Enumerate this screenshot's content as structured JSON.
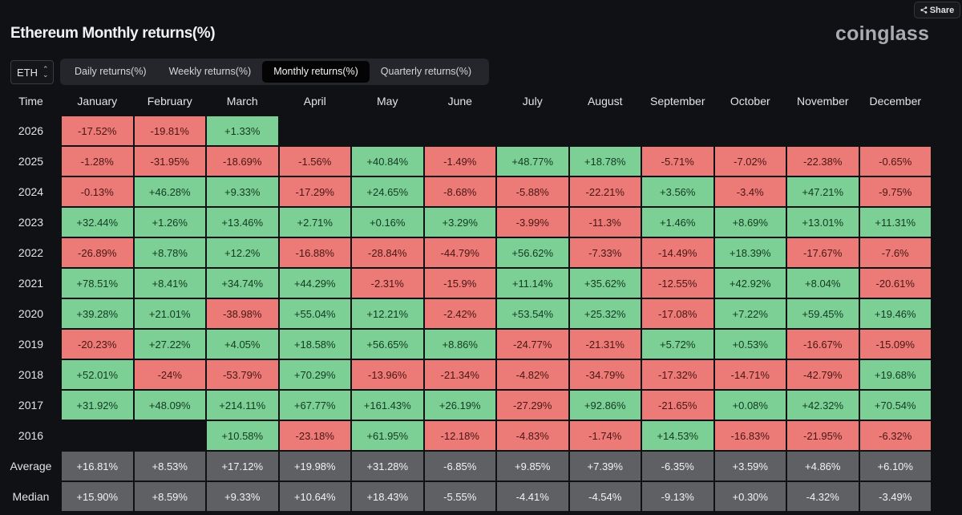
{
  "header": {
    "title": "Ethereum Monthly returns(%)",
    "brand": "coinglass",
    "share_label": "Share"
  },
  "controls": {
    "asset": "ETH",
    "tabs": [
      "Daily returns(%)",
      "Weekly returns(%)",
      "Monthly returns(%)",
      "Quarterly returns(%)"
    ],
    "active_tab": "Monthly returns(%)"
  },
  "colors": {
    "positive": "#7cd096",
    "negative": "#ec7b77",
    "summary": "#5e6064",
    "background": "#101114"
  },
  "table": {
    "headers": [
      "Time",
      "January",
      "February",
      "March",
      "April",
      "May",
      "June",
      "July",
      "August",
      "September",
      "October",
      "November",
      "December"
    ],
    "rows": [
      {
        "year": "2026",
        "values": [
          "-17.52%",
          "-19.81%",
          "+1.33%",
          "",
          "",
          "",
          "",
          "",
          "",
          "",
          "",
          ""
        ]
      },
      {
        "year": "2025",
        "values": [
          "-1.28%",
          "-31.95%",
          "-18.69%",
          "-1.56%",
          "+40.84%",
          "-1.49%",
          "+48.77%",
          "+18.78%",
          "-5.71%",
          "-7.02%",
          "-22.38%",
          "-0.65%"
        ]
      },
      {
        "year": "2024",
        "values": [
          "-0.13%",
          "+46.28%",
          "+9.33%",
          "-17.29%",
          "+24.65%",
          "-8.68%",
          "-5.88%",
          "-22.21%",
          "+3.56%",
          "-3.4%",
          "+47.21%",
          "-9.75%"
        ]
      },
      {
        "year": "2023",
        "values": [
          "+32.44%",
          "+1.26%",
          "+13.46%",
          "+2.71%",
          "+0.16%",
          "+3.29%",
          "-3.99%",
          "-11.3%",
          "+1.46%",
          "+8.69%",
          "+13.01%",
          "+11.31%"
        ]
      },
      {
        "year": "2022",
        "values": [
          "-26.89%",
          "+8.78%",
          "+12.2%",
          "-16.88%",
          "-28.84%",
          "-44.79%",
          "+56.62%",
          "-7.33%",
          "-14.49%",
          "+18.39%",
          "-17.67%",
          "-7.6%"
        ]
      },
      {
        "year": "2021",
        "values": [
          "+78.51%",
          "+8.41%",
          "+34.74%",
          "+44.29%",
          "-2.31%",
          "-15.9%",
          "+11.14%",
          "+35.62%",
          "-12.55%",
          "+42.92%",
          "+8.04%",
          "-20.61%"
        ]
      },
      {
        "year": "2020",
        "values": [
          "+39.28%",
          "+21.01%",
          "-38.98%",
          "+55.04%",
          "+12.21%",
          "-2.42%",
          "+53.54%",
          "+25.32%",
          "-17.08%",
          "+7.22%",
          "+59.45%",
          "+19.46%"
        ]
      },
      {
        "year": "2019",
        "values": [
          "-20.23%",
          "+27.22%",
          "+4.05%",
          "+18.58%",
          "+56.65%",
          "+8.86%",
          "-24.77%",
          "-21.31%",
          "+5.72%",
          "+0.53%",
          "-16.67%",
          "-15.09%"
        ]
      },
      {
        "year": "2018",
        "values": [
          "+52.01%",
          "-24%",
          "-53.79%",
          "+70.29%",
          "-13.96%",
          "-21.34%",
          "-4.82%",
          "-34.79%",
          "-17.32%",
          "-14.71%",
          "-42.79%",
          "+19.68%"
        ]
      },
      {
        "year": "2017",
        "values": [
          "+31.92%",
          "+48.09%",
          "+214.11%",
          "+67.77%",
          "+161.43%",
          "+26.19%",
          "-27.29%",
          "+92.86%",
          "-21.65%",
          "+0.08%",
          "+42.32%",
          "+70.54%"
        ]
      },
      {
        "year": "2016",
        "values": [
          "",
          "",
          "+10.58%",
          "-23.18%",
          "+61.95%",
          "-12.18%",
          "-4.83%",
          "-1.74%",
          "+14.53%",
          "-16.83%",
          "-21.95%",
          "-6.32%"
        ]
      }
    ],
    "summary_rows": [
      {
        "label": "Average",
        "values": [
          "+16.81%",
          "+8.53%",
          "+17.12%",
          "+19.98%",
          "+31.28%",
          "-6.85%",
          "+9.85%",
          "+7.39%",
          "-6.35%",
          "+3.59%",
          "+4.86%",
          "+6.10%"
        ]
      },
      {
        "label": "Median",
        "values": [
          "+15.90%",
          "+8.59%",
          "+9.33%",
          "+10.64%",
          "+18.43%",
          "-5.55%",
          "-4.41%",
          "-4.54%",
          "-9.13%",
          "+0.30%",
          "-4.32%",
          "-3.49%"
        ]
      }
    ]
  }
}
